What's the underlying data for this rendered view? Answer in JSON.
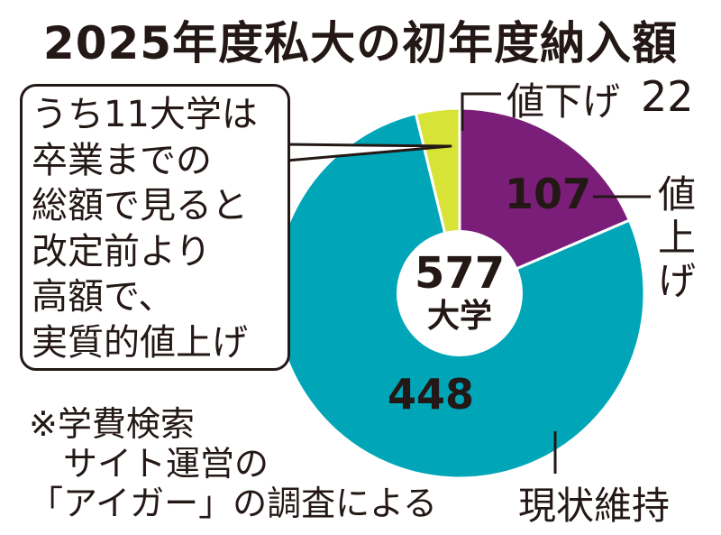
{
  "title": "2025年度私大の初年度納入額",
  "callout_lines": [
    "うち11大学は",
    "卒業までの",
    "総額で見ると",
    "改定前より",
    "高額で、",
    "実質的値上げ"
  ],
  "note_lines": [
    "※学費検索",
    "サイト運営の",
    "「アイガー」の調査による"
  ],
  "center": {
    "total": "577",
    "unit": "大学"
  },
  "colors": {
    "up": "#7b1e7a",
    "same": "#00a6b8",
    "down": "#d7e337",
    "ink": "#231815"
  },
  "chart_data": {
    "type": "pie",
    "title": "2025年度私大の初年度納入額",
    "total": 577,
    "slices": [
      {
        "label": "値上げ",
        "value": 107
      },
      {
        "label": "現状維持",
        "value": 448
      },
      {
        "label": "値下げ",
        "value": 22
      }
    ]
  }
}
